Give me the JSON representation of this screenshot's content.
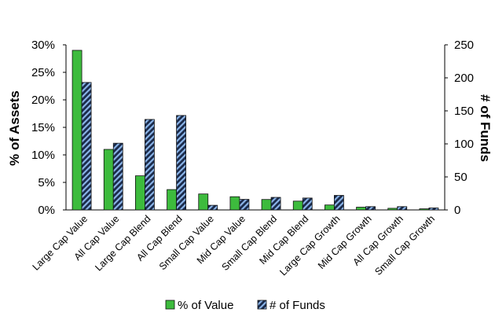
{
  "chart_data": {
    "type": "bar",
    "categories": [
      "Large Cap Value",
      "All Cap Value",
      "Large Cap Blend",
      "All Cap Blend",
      "Small Cap Value",
      "Mid Cap Value",
      "Small Cap Blend",
      "Mid Cap Blend",
      "Large Cap Growth",
      "Mid Cap Growth",
      "All Cap Growth",
      "Small Cap Growth"
    ],
    "series": [
      {
        "name": "% of Value",
        "axis": "left",
        "color": "#3dbb3d",
        "values": [
          0.29,
          0.11,
          0.062,
          0.037,
          0.029,
          0.024,
          0.019,
          0.016,
          0.009,
          0.005,
          0.003,
          0.002
        ]
      },
      {
        "name": "# of Funds",
        "axis": "right",
        "color": "#1a2a4a",
        "pattern": "diagonal-blue-stripes",
        "values": [
          193,
          101,
          137,
          143,
          7,
          16,
          19,
          18,
          22,
          5,
          5,
          3
        ]
      }
    ],
    "y_left": {
      "label": "% of Assets",
      "ylim": [
        0,
        0.3
      ],
      "ticks": [
        "0%",
        "5%",
        "10%",
        "15%",
        "20%",
        "25%",
        "30%"
      ]
    },
    "y_right": {
      "label": "# of Funds",
      "ylim": [
        0,
        250
      ],
      "ticks": [
        "0",
        "50",
        "100",
        "150",
        "200",
        "250"
      ]
    },
    "grid": false,
    "legend": "bottom"
  }
}
